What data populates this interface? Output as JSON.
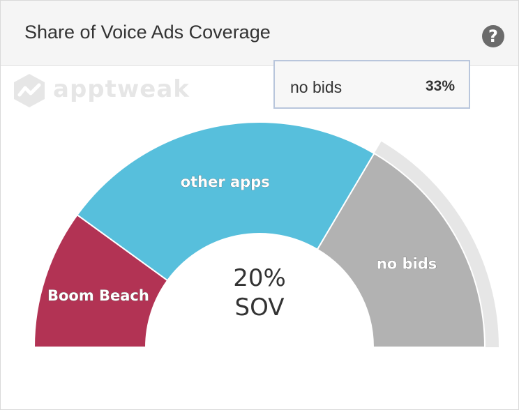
{
  "header": {
    "title": "Share of Voice Ads Coverage",
    "help_glyph": "?",
    "help_icon": "question-circle-icon"
  },
  "watermark": {
    "brand": "apptweak",
    "icon": "apptweak-logo-icon"
  },
  "tooltip": {
    "label": "no bids",
    "value": "33%"
  },
  "chart_data": {
    "type": "pie",
    "subtype": "semi-donut",
    "categories": [
      "Boom Beach",
      "other apps",
      "no bids"
    ],
    "values": [
      20,
      47,
      33
    ],
    "unit": "%",
    "colors": [
      "#b23354",
      "#57bfdc",
      "#b2b2b2"
    ],
    "highlighted": "no bids",
    "center_label": {
      "value": "20%",
      "caption": "SOV"
    }
  }
}
